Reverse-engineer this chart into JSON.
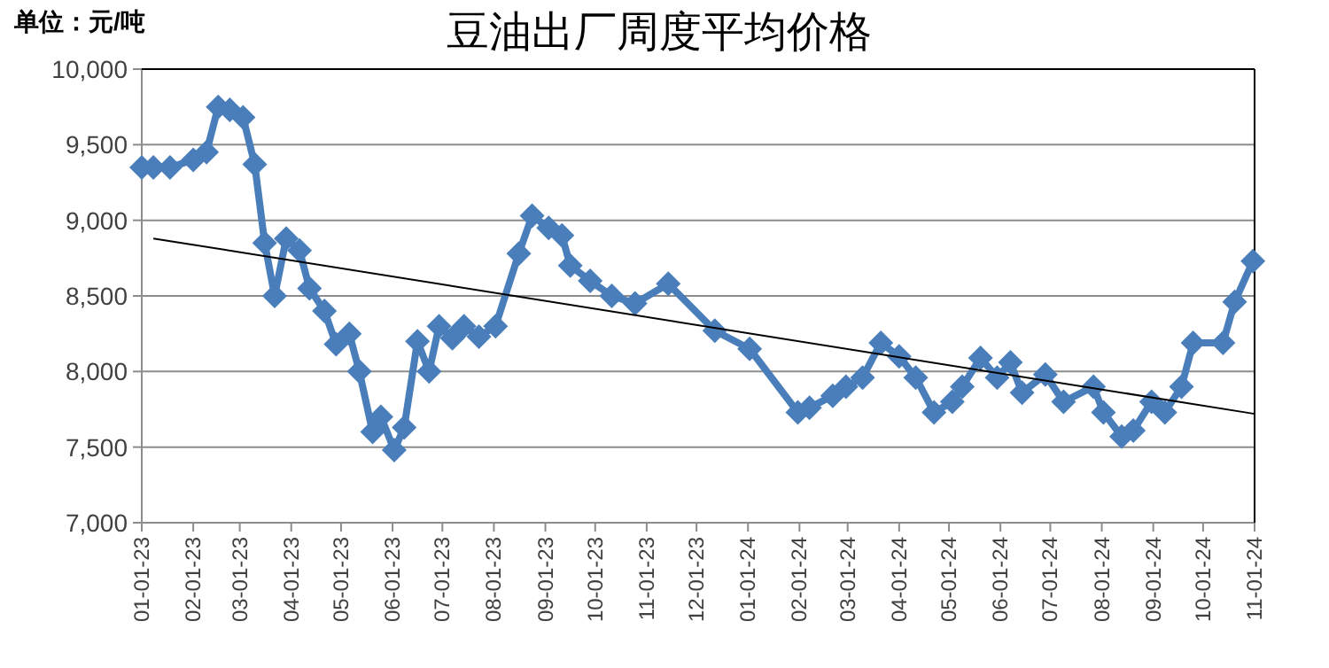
{
  "chart_data": {
    "type": "line",
    "title": "豆油出厂周度平均价格",
    "annotations": [
      "单位：元/吨"
    ],
    "x": [
      "2023-01-01",
      "2023-01-08",
      "2023-01-18",
      "2023-02-01",
      "2023-02-09",
      "2023-02-16",
      "2023-02-23",
      "2023-03-03",
      "2023-03-10",
      "2023-03-16",
      "2023-03-22",
      "2023-03-29",
      "2023-04-06",
      "2023-04-12",
      "2023-04-21",
      "2023-04-28",
      "2023-05-06",
      "2023-05-12",
      "2023-05-20",
      "2023-05-25",
      "2023-06-02",
      "2023-06-08",
      "2023-06-16",
      "2023-06-23",
      "2023-06-29",
      "2023-07-07",
      "2023-07-14",
      "2023-07-23",
      "2023-08-02",
      "2023-08-16",
      "2023-08-24",
      "2023-09-03",
      "2023-09-11",
      "2023-09-16",
      "2023-09-28",
      "2023-10-11",
      "2023-10-25",
      "2023-11-14",
      "2023-12-12",
      "2024-01-02",
      "2024-01-31",
      "2024-02-07",
      "2024-02-21",
      "2024-02-29",
      "2024-03-10",
      "2024-03-21",
      "2024-04-01",
      "2024-04-11",
      "2024-04-22",
      "2024-05-03",
      "2024-05-09",
      "2024-05-20",
      "2024-05-30",
      "2024-06-07",
      "2024-06-14",
      "2024-06-28",
      "2024-07-09",
      "2024-07-27",
      "2024-08-02",
      "2024-08-13",
      "2024-08-20",
      "2024-08-31",
      "2024-09-08",
      "2024-09-18",
      "2024-09-25",
      "2024-10-13",
      "2024-10-20",
      "2024-10-31"
    ],
    "series": [
      {
        "color": "#4a7ebb",
        "marker": "diamond",
        "values": [
          9350,
          9350,
          9350,
          9400,
          9450,
          9750,
          9730,
          9680,
          9370,
          8850,
          8500,
          8880,
          8800,
          8550,
          8400,
          8180,
          8250,
          8000,
          7600,
          7700,
          7480,
          7630,
          8200,
          8000,
          8300,
          8220,
          8300,
          8230,
          8300,
          8780,
          9030,
          8950,
          8900,
          8700,
          8600,
          8500,
          8450,
          8580,
          8270,
          8150,
          7730,
          7760,
          7840,
          7900,
          7960,
          8190,
          8100,
          7960,
          7730,
          7800,
          7900,
          8090,
          7960,
          8060,
          7860,
          7980,
          7800,
          7900,
          7730,
          7570,
          7610,
          7800,
          7730,
          7900,
          8190,
          8190,
          8460,
          8730
        ]
      },
      {
        "type": "line",
        "color": "#000000",
        "marker": "none",
        "x": [
          "2023-01-08",
          "2024-11-01"
        ],
        "values": [
          8880,
          7720
        ]
      }
    ],
    "xlim": [
      "2023-01-01",
      "2024-11-01"
    ],
    "xticks": [
      {
        "value": "2023-01-01",
        "label": "01-01-23"
      },
      {
        "value": "2023-02-01",
        "label": "02-01-23"
      },
      {
        "value": "2023-03-01",
        "label": "03-01-23"
      },
      {
        "value": "2023-04-01",
        "label": "04-01-23"
      },
      {
        "value": "2023-05-01",
        "label": "05-01-23"
      },
      {
        "value": "2023-06-01",
        "label": "06-01-23"
      },
      {
        "value": "2023-07-01",
        "label": "07-01-23"
      },
      {
        "value": "2023-08-01",
        "label": "08-01-23"
      },
      {
        "value": "2023-09-01",
        "label": "09-01-23"
      },
      {
        "value": "2023-10-01",
        "label": "10-01-23"
      },
      {
        "value": "2023-11-01",
        "label": "11-01-23"
      },
      {
        "value": "2023-12-01",
        "label": "12-01-23"
      },
      {
        "value": "2024-01-01",
        "label": "01-01-24"
      },
      {
        "value": "2024-02-01",
        "label": "02-01-24"
      },
      {
        "value": "2024-03-01",
        "label": "03-01-24"
      },
      {
        "value": "2024-04-01",
        "label": "04-01-24"
      },
      {
        "value": "2024-05-01",
        "label": "05-01-24"
      },
      {
        "value": "2024-06-01",
        "label": "06-01-24"
      },
      {
        "value": "2024-07-01",
        "label": "07-01-24"
      },
      {
        "value": "2024-08-01",
        "label": "08-01-24"
      },
      {
        "value": "2024-09-01",
        "label": "09-01-24"
      },
      {
        "value": "2024-10-01",
        "label": "10-01-24"
      },
      {
        "value": "2024-11-01",
        "label": "11-01-24"
      }
    ],
    "ylim": [
      7000,
      10000
    ],
    "yticks": [
      {
        "value": 7000,
        "label": "7,000"
      },
      {
        "value": 7500,
        "label": "7,500"
      },
      {
        "value": 8000,
        "label": "8,000"
      },
      {
        "value": 8500,
        "label": "8,500"
      },
      {
        "value": 9000,
        "label": "9,000"
      },
      {
        "value": 9500,
        "label": "9,500"
      },
      {
        "value": 10000,
        "label": "10,000"
      }
    ],
    "grid": "y",
    "line_style": "solid"
  }
}
